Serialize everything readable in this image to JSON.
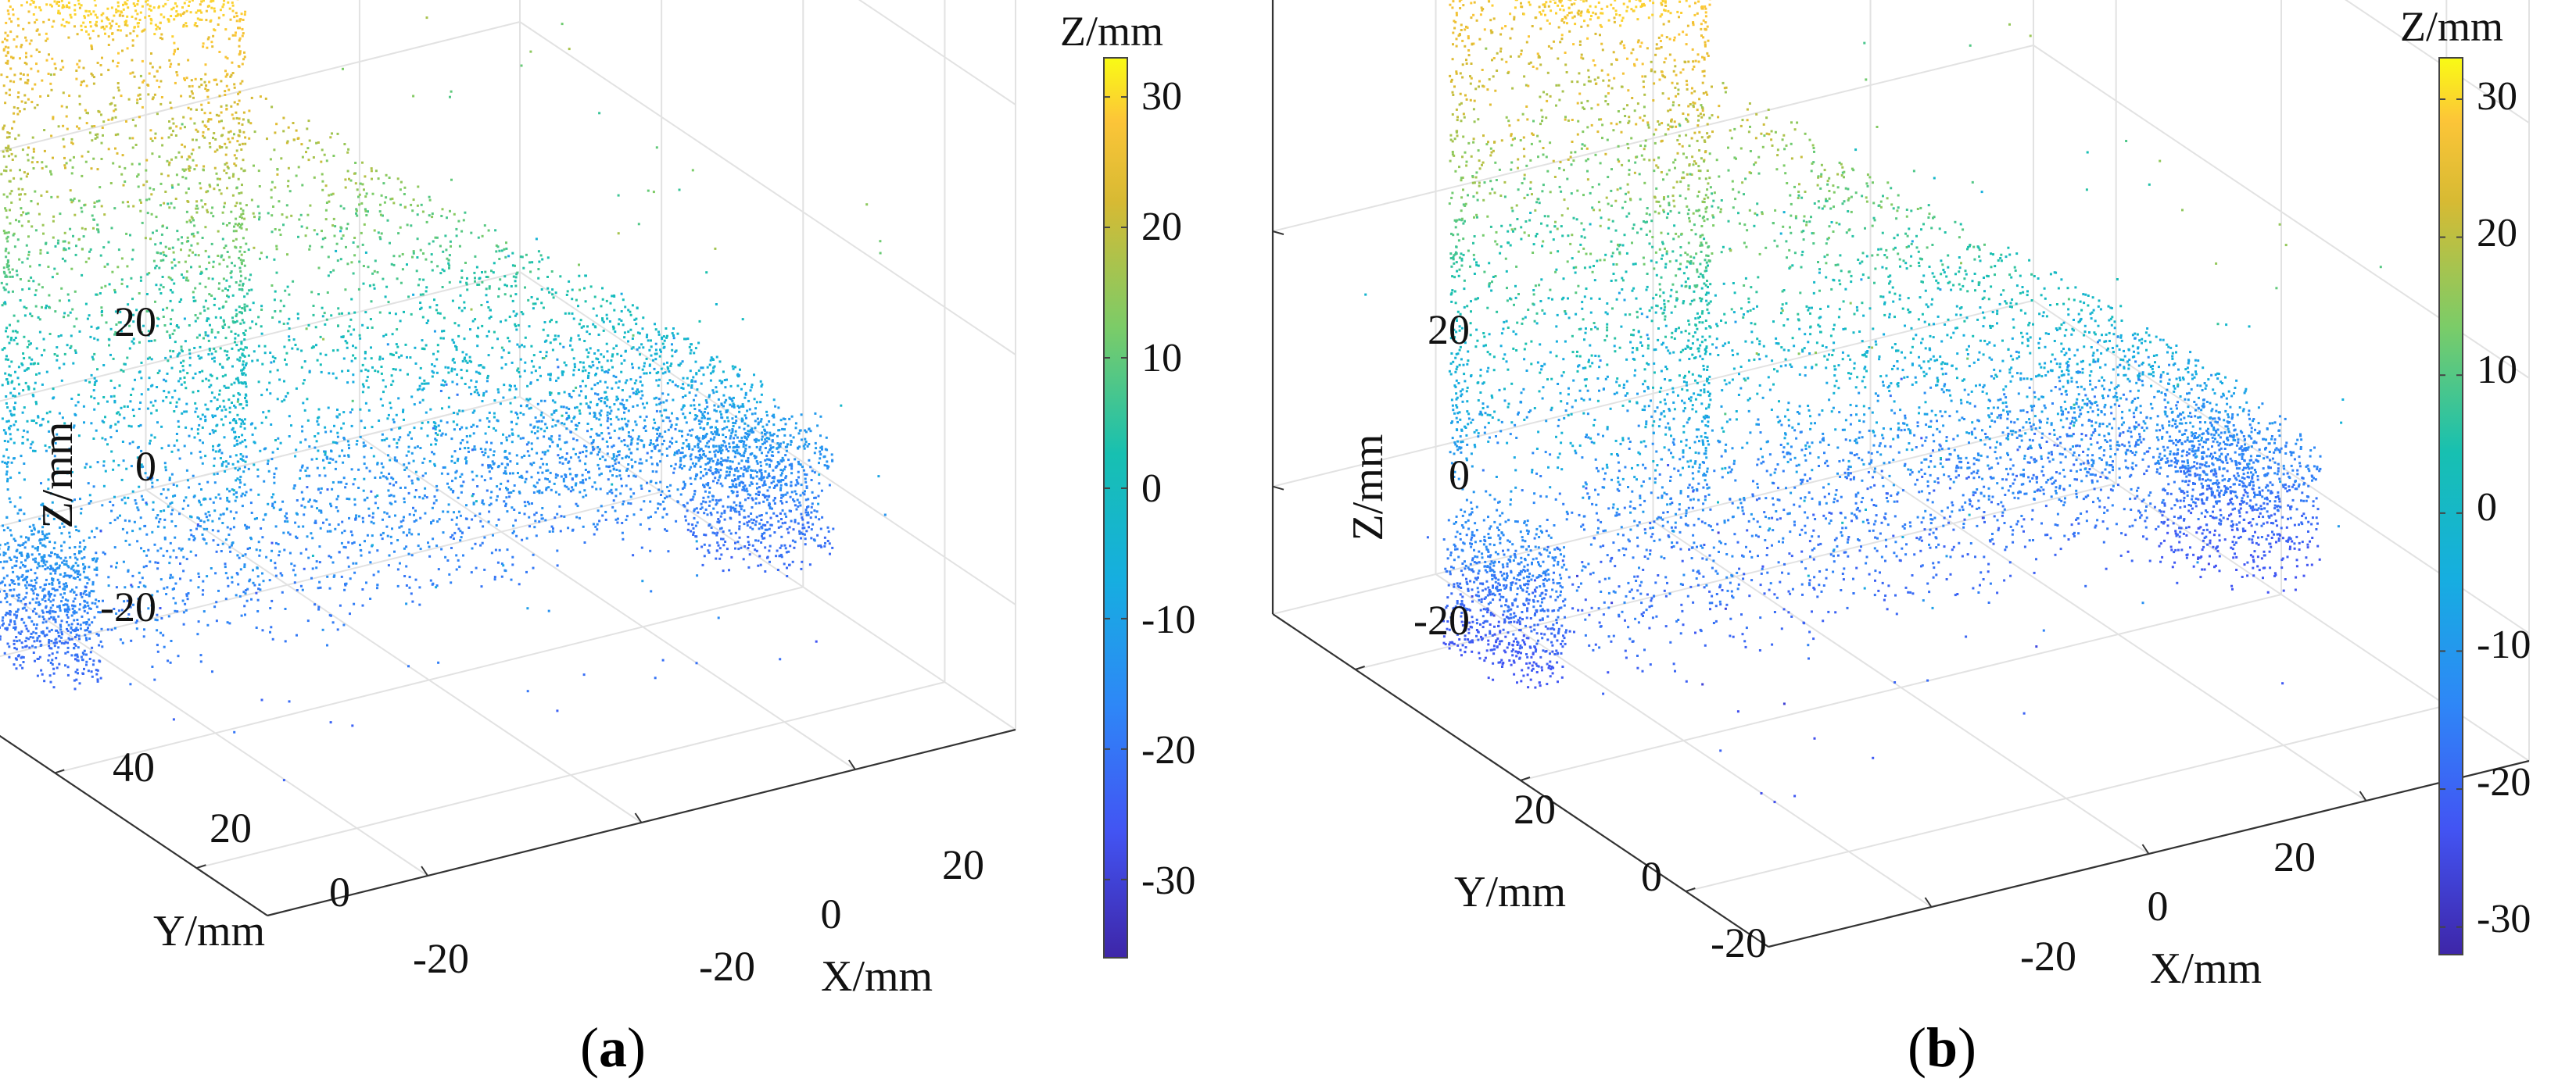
{
  "figure": {
    "type": "3d-scatter",
    "captions": [
      {
        "open": "(",
        "letter": "a",
        "close": ")"
      },
      {
        "open": "(",
        "letter": "b",
        "close": ")"
      }
    ]
  },
  "chart_data": [
    {
      "type": "scatter",
      "panel": "a",
      "projection": "3d",
      "xlabel": "X/mm",
      "ylabel": "Y/mm",
      "zlabel": "Z/mm",
      "x_ticks": [
        "-20",
        "0",
        "20"
      ],
      "y_ticks": [
        "-20",
        "0",
        "20",
        "40"
      ],
      "z_ticks": [
        "-20",
        "0",
        "20"
      ],
      "xlim": [
        -35,
        35
      ],
      "ylim": [
        -30,
        40
      ],
      "zlim": [
        -30,
        30
      ],
      "grid": true,
      "colorbar": {
        "title": "Z/mm",
        "ticks": [
          "30",
          "20",
          "10",
          "0",
          "-10",
          "-20",
          "-30"
        ],
        "range": [
          -36,
          33
        ],
        "colormap": "parula"
      }
    },
    {
      "type": "scatter",
      "panel": "b",
      "projection": "3d",
      "xlabel": "X/mm",
      "ylabel": "Y/mm",
      "zlabel": "Z/mm",
      "x_ticks": [
        "-20",
        "0",
        "20"
      ],
      "y_ticks": [
        "-20",
        "0",
        "20"
      ],
      "z_ticks": [
        "-20",
        "0",
        "20"
      ],
      "xlim": [
        -35,
        35
      ],
      "ylim": [
        -30,
        30
      ],
      "zlim": [
        -30,
        30
      ],
      "grid": true,
      "colorbar": {
        "title": "Z/mm",
        "ticks": [
          "30",
          "20",
          "10",
          "0",
          "-10",
          "-20",
          "-30"
        ],
        "range": [
          -32,
          33
        ],
        "colormap": "parula"
      }
    }
  ]
}
